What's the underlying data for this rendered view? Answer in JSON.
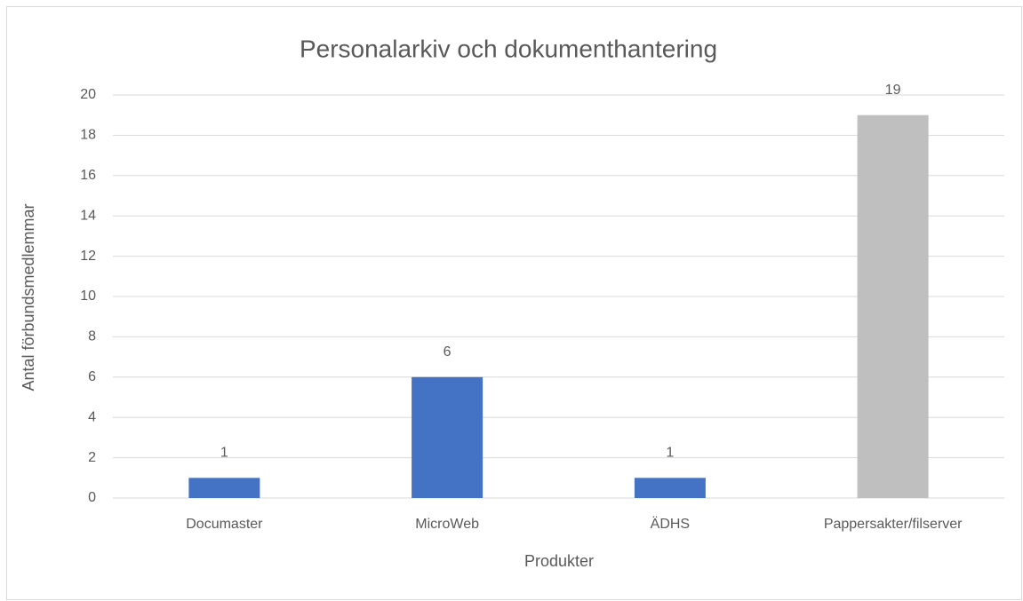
{
  "chart_data": {
    "type": "bar",
    "title": "Personalarkiv och dokumenthantering",
    "x_label": "Produkter",
    "y_label": "Antal förbundsmedlemmar",
    "categories": [
      "Documaster",
      "MicroWeb",
      "ÄDHS",
      "Pappersakter/filserver"
    ],
    "values": [
      1,
      6,
      1,
      19
    ],
    "colors": [
      "#4472c4",
      "#4472c4",
      "#4472c4",
      "#bfbfbf"
    ],
    "ylim": [
      0,
      20
    ],
    "yticks": [
      0,
      2,
      4,
      6,
      8,
      10,
      12,
      14,
      16,
      18,
      20
    ],
    "grid": true
  }
}
